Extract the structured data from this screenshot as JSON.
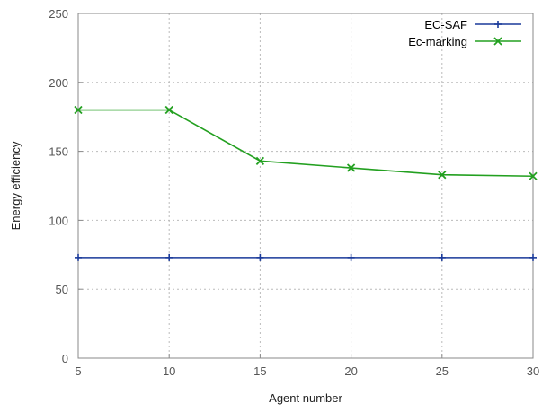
{
  "chart_data": {
    "type": "line",
    "title": "",
    "xlabel": "Agent number",
    "ylabel": "Energy efficiency",
    "x": [
      5,
      10,
      15,
      20,
      25,
      30
    ],
    "xlim": [
      5,
      30
    ],
    "ylim": [
      0,
      250
    ],
    "xticks": [
      "5",
      "10",
      "15",
      "20",
      "25",
      "30"
    ],
    "yticks": [
      "0",
      "50",
      "100",
      "150",
      "200",
      "250"
    ],
    "grid": true,
    "legend_position": "top-right",
    "series": [
      {
        "name": "EC-SAF",
        "values": [
          73,
          73,
          73,
          73,
          73,
          73
        ],
        "color": "#1a3a9a",
        "marker": "plus"
      },
      {
        "name": "Ec-marking",
        "values": [
          180,
          180,
          143,
          138,
          133,
          132
        ],
        "color": "#23a020",
        "marker": "x"
      }
    ]
  }
}
